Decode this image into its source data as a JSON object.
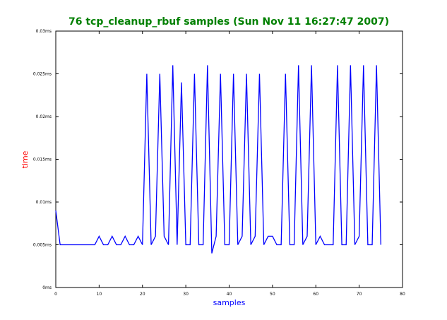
{
  "chart_data": {
    "type": "line",
    "title": "76 tcp_cleanup_rbuf samples (Sun Nov 11 16:27:47 2007)",
    "xlabel": "samples",
    "ylabel": "time",
    "xlim": [
      0,
      80
    ],
    "ylim": [
      0,
      0.03
    ],
    "x_ticks": [
      0,
      10,
      20,
      30,
      40,
      50,
      60,
      70,
      80
    ],
    "x_tick_labels": [
      "0",
      "10",
      "20",
      "30",
      "40",
      "50",
      "60",
      "70",
      "80"
    ],
    "y_ticks": [
      0,
      0.005,
      0.01,
      0.015,
      0.02,
      0.025,
      0.03
    ],
    "y_tick_labels": [
      "0ms",
      "0.005ms",
      "0.01ms",
      "0.015ms",
      "0.02ms",
      "0.025ms",
      "0.03ms"
    ],
    "grid": false,
    "colors": {
      "line": "#0000ff",
      "title": "#008000",
      "ylabel": "#ff0000",
      "xlabel": "#0000ff",
      "axes": "#000000"
    },
    "series": [
      {
        "x": [
          0,
          1,
          2,
          3,
          4,
          5,
          6,
          7,
          8,
          9,
          10,
          11,
          12,
          13,
          14,
          15,
          16,
          17,
          18,
          19,
          20,
          21,
          22,
          23,
          24,
          25,
          26,
          27,
          28,
          29,
          30,
          31,
          32,
          33,
          34,
          35,
          36,
          37,
          38,
          39,
          40,
          41,
          42,
          43,
          44,
          45,
          46,
          47,
          48,
          49,
          50,
          51,
          52,
          53,
          54,
          55,
          56,
          57,
          58,
          59,
          60,
          61,
          62,
          63,
          64,
          65,
          66,
          67,
          68,
          69,
          70,
          71,
          72,
          73,
          74,
          75
        ],
        "values": [
          0.009,
          0.005,
          0.005,
          0.005,
          0.005,
          0.005,
          0.005,
          0.005,
          0.005,
          0.005,
          0.006,
          0.005,
          0.005,
          0.006,
          0.005,
          0.005,
          0.006,
          0.005,
          0.005,
          0.006,
          0.005,
          0.025,
          0.005,
          0.006,
          0.025,
          0.006,
          0.005,
          0.026,
          0.005,
          0.024,
          0.005,
          0.005,
          0.025,
          0.005,
          0.005,
          0.026,
          0.004,
          0.006,
          0.025,
          0.005,
          0.005,
          0.025,
          0.005,
          0.006,
          0.025,
          0.005,
          0.006,
          0.025,
          0.005,
          0.006,
          0.006,
          0.005,
          0.005,
          0.025,
          0.005,
          0.005,
          0.026,
          0.005,
          0.006,
          0.026,
          0.005,
          0.006,
          0.005,
          0.005,
          0.005,
          0.026,
          0.005,
          0.005,
          0.026,
          0.005,
          0.006,
          0.026,
          0.005,
          0.005,
          0.026,
          0.005
        ]
      }
    ]
  }
}
